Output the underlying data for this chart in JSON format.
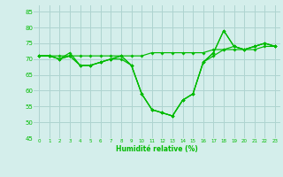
{
  "title": "",
  "xlabel": "Humidité relative (%)",
  "ylabel": "",
  "background_color": "#d4eeeb",
  "grid_color": "#aed4d0",
  "line_color": "#00bb00",
  "xlim": [
    -0.5,
    23.5
  ],
  "ylim": [
    45,
    87
  ],
  "yticks": [
    45,
    50,
    55,
    60,
    65,
    70,
    75,
    80,
    85
  ],
  "xticks": [
    0,
    1,
    2,
    3,
    4,
    5,
    6,
    7,
    8,
    9,
    10,
    11,
    12,
    13,
    14,
    15,
    16,
    17,
    18,
    19,
    20,
    21,
    22,
    23
  ],
  "series": [
    [
      71,
      71,
      71,
      71,
      71,
      71,
      71,
      71,
      71,
      71,
      71,
      72,
      72,
      72,
      72,
      72,
      72,
      73,
      73,
      73,
      73,
      73,
      74,
      74
    ],
    [
      71,
      71,
      70,
      71,
      68,
      68,
      69,
      70,
      71,
      68,
      59,
      54,
      53,
      52,
      57,
      59,
      69,
      72,
      79,
      74,
      73,
      74,
      75,
      74
    ],
    [
      71,
      71,
      70,
      72,
      68,
      68,
      69,
      70,
      70,
      68,
      59,
      54,
      53,
      52,
      57,
      59,
      69,
      72,
      79,
      74,
      73,
      74,
      75,
      74
    ],
    [
      71,
      71,
      70,
      71,
      68,
      68,
      69,
      70,
      71,
      68,
      59,
      54,
      53,
      52,
      57,
      59,
      69,
      71,
      73,
      74,
      73,
      74,
      75,
      74
    ]
  ]
}
